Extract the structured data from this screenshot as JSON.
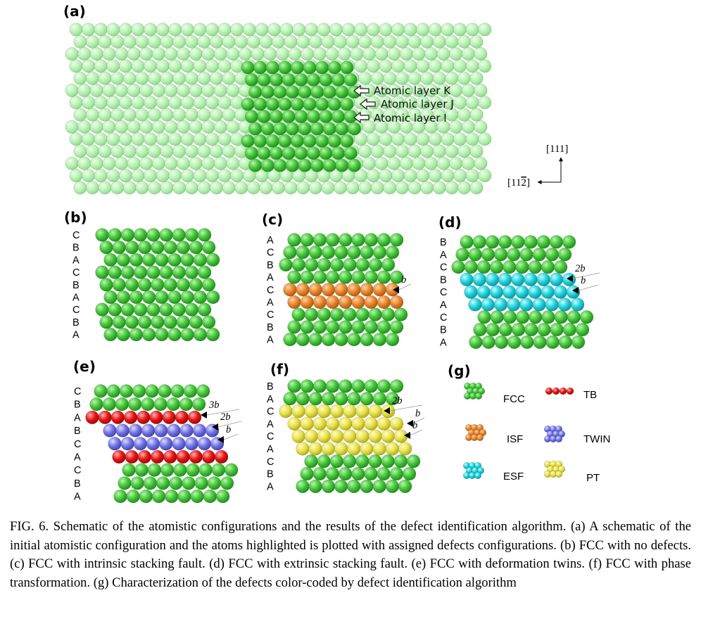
{
  "panel_labels": {
    "a": "(a)",
    "b": "(b)",
    "c": "(c)",
    "d": "(d)",
    "e": "(e)",
    "f": "(f)",
    "g": "(g)"
  },
  "atomic_layers": {
    "k": "Atomic layer K",
    "j": "Atomic layer J",
    "i": "Atomic layer I"
  },
  "directions": {
    "up": "[111]",
    "left": "[11̄2̄]"
  },
  "sequences": {
    "b": [
      "C",
      "B",
      "A",
      "C",
      "B",
      "A",
      "C",
      "B",
      "A"
    ],
    "c": [
      "A",
      "C",
      "B",
      "A",
      "C",
      "A",
      "C",
      "B",
      "A"
    ],
    "d": [
      "B",
      "A",
      "C",
      "B",
      "C",
      "A",
      "C",
      "B",
      "A"
    ],
    "e": [
      "C",
      "B",
      "A",
      "B",
      "C",
      "A",
      "C",
      "B",
      "A"
    ],
    "f": [
      "B",
      "A",
      "C",
      "A",
      "C",
      "A",
      "C",
      "B",
      "A"
    ]
  },
  "burgers": {
    "c": [
      "b"
    ],
    "d": [
      "2b",
      "b"
    ],
    "e": [
      "3b",
      "2b",
      "b"
    ],
    "f": [
      "2b",
      "b",
      "b"
    ]
  },
  "legend": {
    "fcc": "FCC",
    "tb": "TB",
    "isf": "ISF",
    "twin": "TWIN",
    "esf": "ESF",
    "pt": "PT"
  },
  "colors": {
    "fcc": "#3fc23a",
    "fcc_light": "#b4efb0",
    "isf": "#e5832a",
    "esf": "#1ed0da",
    "tb": "#e41414",
    "twin": "#6f70e6",
    "pt": "#e7e24a"
  },
  "caption": "FIG. 6. Schematic of the atomistic configurations and the results of the defect identification algorithm. (a) A schematic of the initial atomistic configuration and the atoms highlighted is plotted with assigned defects configurations. (b) FCC with no defects. (c) FCC with intrinsic stacking fault. (d) FCC with extrinsic stacking fault. (e) FCC with deformation twins. (f) FCC  with phase transformation. (g) Characterization of the defects color-coded by defect identification algorithm"
}
